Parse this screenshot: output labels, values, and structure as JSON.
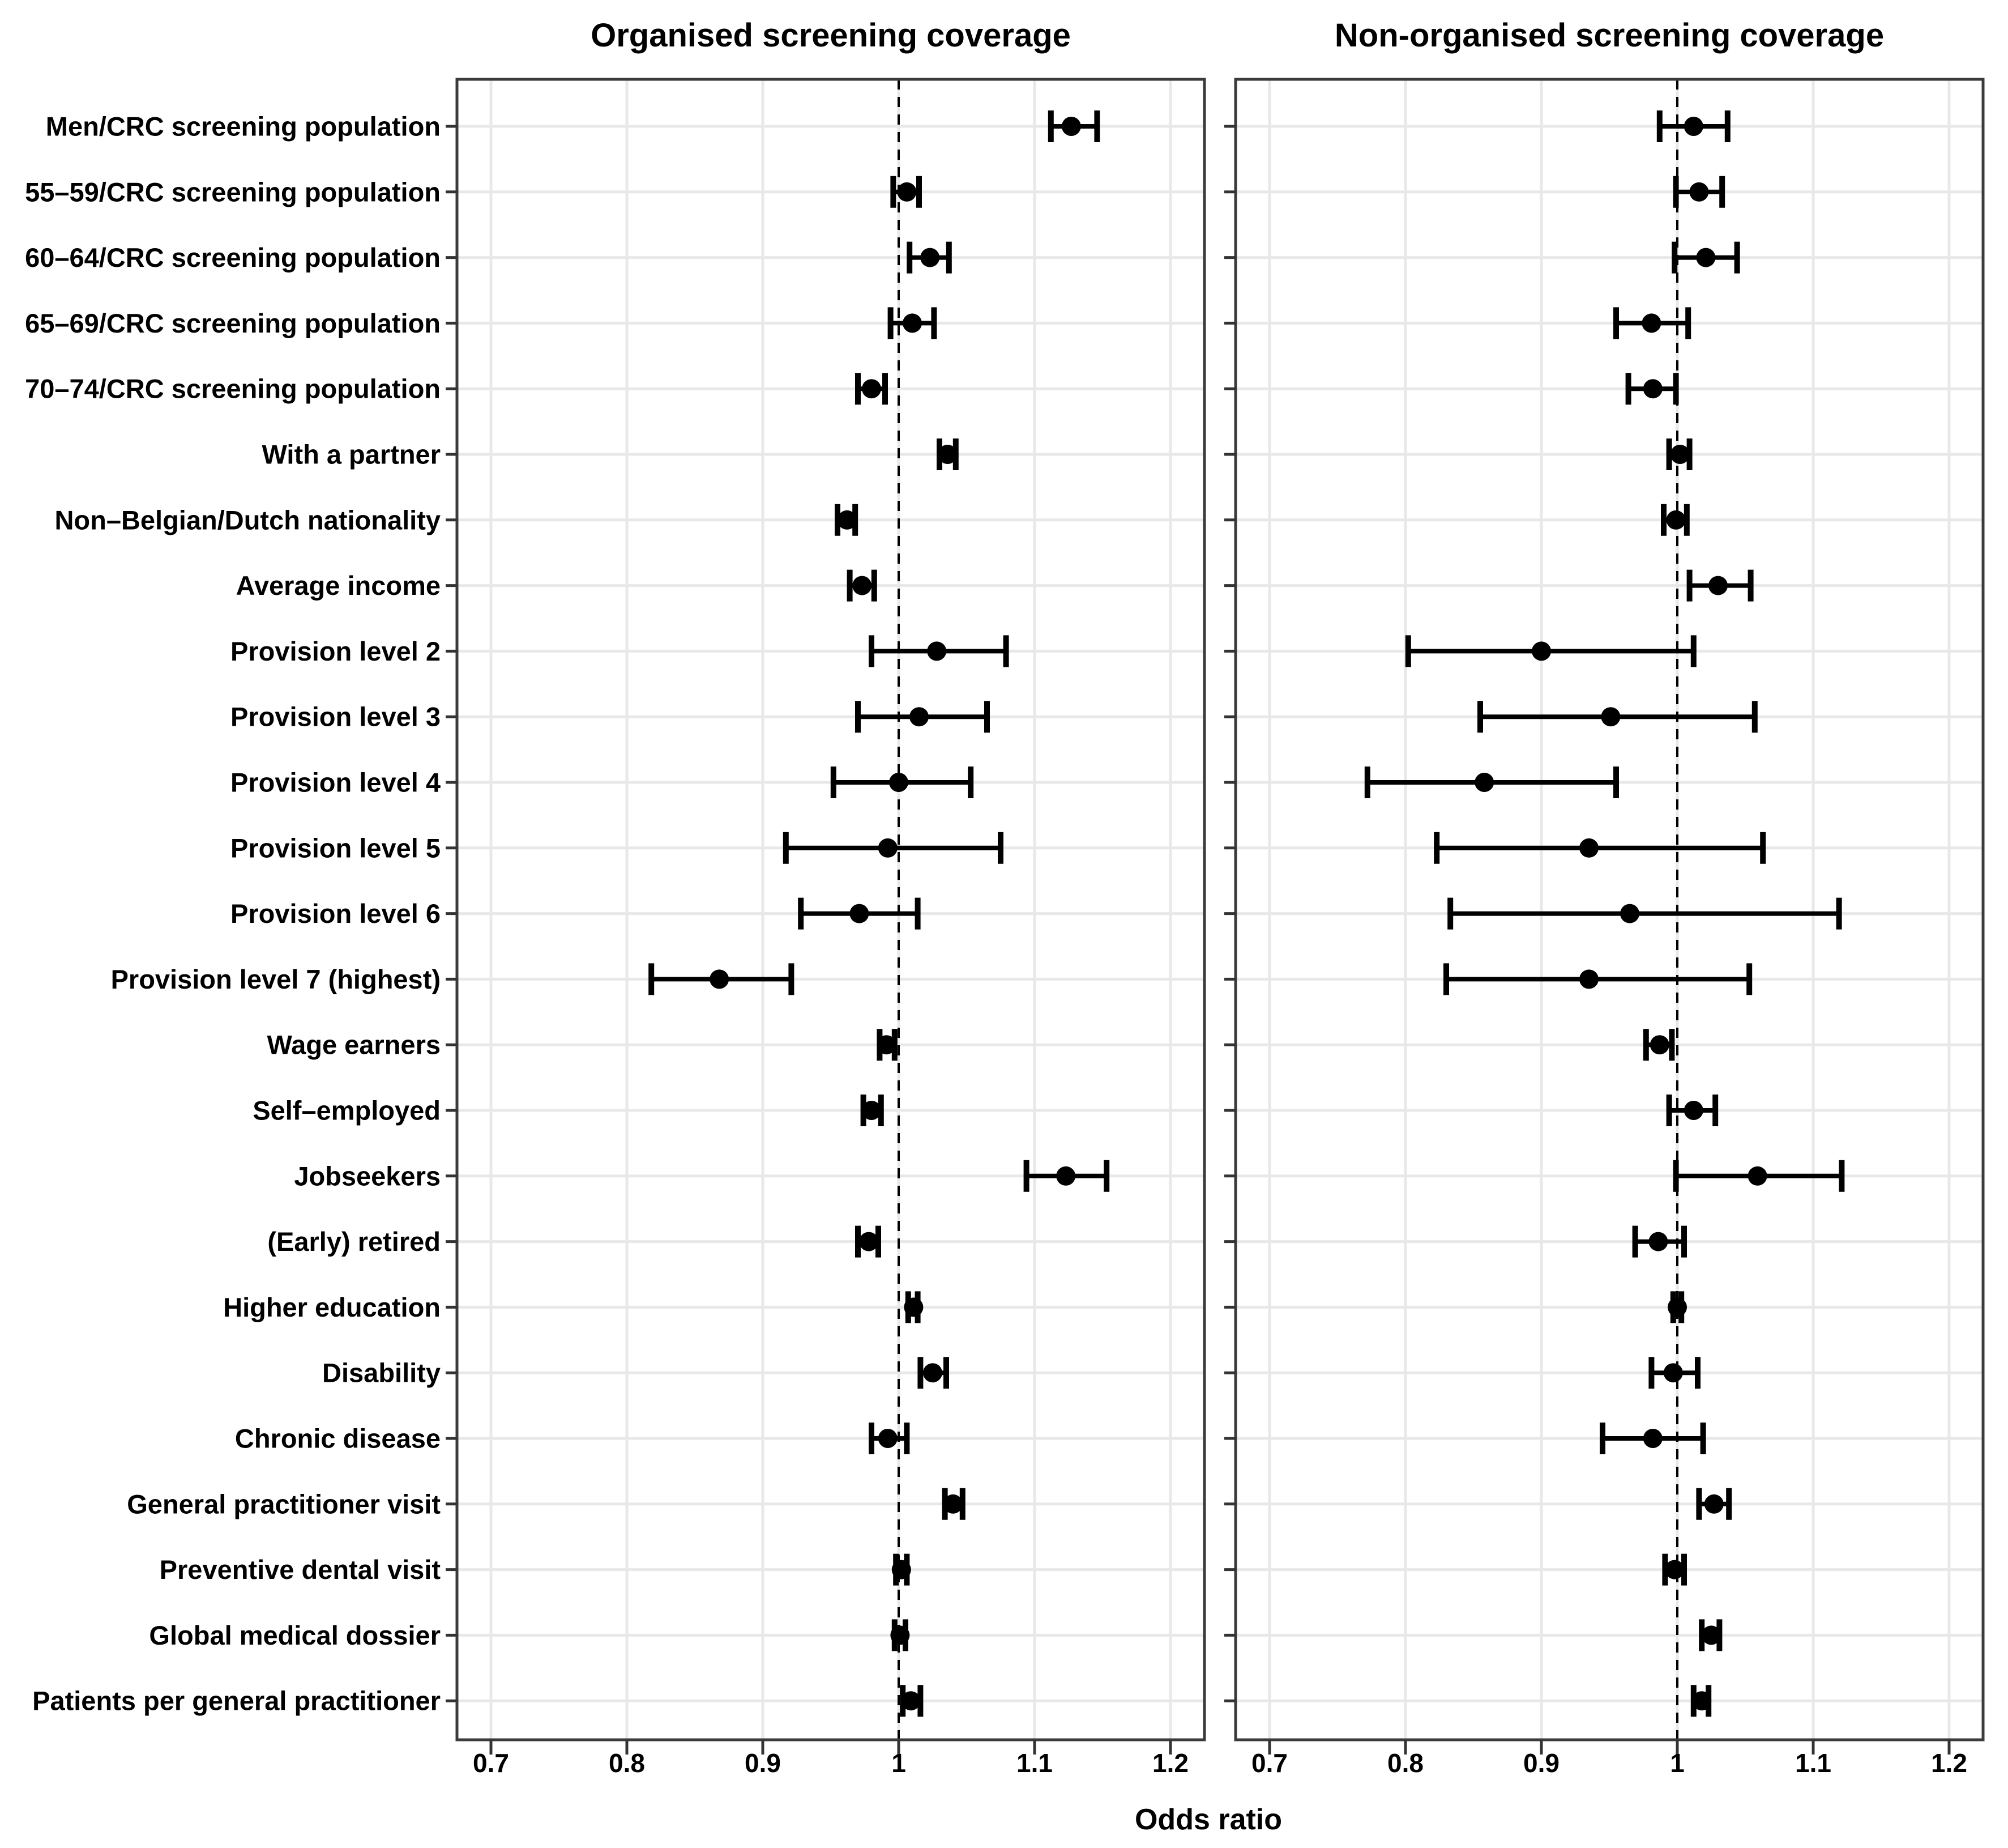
{
  "figure": {
    "xlabel": "Odds ratio",
    "panel_titles": {
      "left": "Organised screening coverage",
      "right": "Non-organised screening coverage"
    }
  },
  "chart_data": {
    "type": "scatter",
    "subtype": "forest-plot",
    "title_left": "Organised screening coverage",
    "title_right": "Non-organised screening coverage",
    "xlabel": "Odds ratio",
    "x_axis": {
      "range": [
        0.675,
        1.225
      ],
      "ticks": [
        {
          "value": 0.7,
          "label": "0.7"
        },
        {
          "value": 0.8,
          "label": "0.8"
        },
        {
          "value": 0.9,
          "label": "0.9"
        },
        {
          "value": 1.0,
          "label": "1"
        },
        {
          "value": 1.1,
          "label": "1.1"
        },
        {
          "value": 1.2,
          "label": "1.2"
        }
      ],
      "reference_line": 1.0,
      "grid": true
    },
    "categories": [
      "Men/CRC screening population",
      "55–59/CRC screening population",
      "60–64/CRC screening population",
      "65–69/CRC screening population",
      "70–74/CRC screening population",
      "With a partner",
      "Non–Belgian/Dutch nationality",
      "Average income",
      "Provision level 2",
      "Provision level 3",
      "Provision level 4",
      "Provision level 5",
      "Provision level 6",
      "Provision level 7 (highest)",
      "Wage earners",
      "Self–employed",
      "Jobseekers",
      "(Early) retired",
      "Higher education",
      "Disability",
      "Chronic disease",
      "General practitioner visit",
      "Preventive dental visit",
      "Global medical dossier",
      "Patients per general practitioner"
    ],
    "series": [
      {
        "name": "Organised screening coverage",
        "points": [
          {
            "or": 1.127,
            "lo": 1.112,
            "hi": 1.146
          },
          {
            "or": 1.006,
            "lo": 0.996,
            "hi": 1.015
          },
          {
            "or": 1.023,
            "lo": 1.008,
            "hi": 1.037
          },
          {
            "or": 1.01,
            "lo": 0.994,
            "hi": 1.026
          },
          {
            "or": 0.98,
            "lo": 0.97,
            "hi": 0.99
          },
          {
            "or": 1.036,
            "lo": 1.03,
            "hi": 1.042
          },
          {
            "or": 0.962,
            "lo": 0.955,
            "hi": 0.968
          },
          {
            "or": 0.973,
            "lo": 0.964,
            "hi": 0.982
          },
          {
            "or": 1.028,
            "lo": 0.98,
            "hi": 1.079
          },
          {
            "or": 1.015,
            "lo": 0.97,
            "hi": 1.065
          },
          {
            "or": 1.0,
            "lo": 0.952,
            "hi": 1.053
          },
          {
            "or": 0.992,
            "lo": 0.917,
            "hi": 1.075
          },
          {
            "or": 0.971,
            "lo": 0.928,
            "hi": 1.014
          },
          {
            "or": 0.868,
            "lo": 0.818,
            "hi": 0.921
          },
          {
            "or": 0.991,
            "lo": 0.986,
            "hi": 0.997
          },
          {
            "or": 0.98,
            "lo": 0.974,
            "hi": 0.987
          },
          {
            "or": 1.123,
            "lo": 1.094,
            "hi": 1.153
          },
          {
            "or": 0.978,
            "lo": 0.97,
            "hi": 0.985
          },
          {
            "or": 1.011,
            "lo": 1.007,
            "hi": 1.014
          },
          {
            "or": 1.025,
            "lo": 1.016,
            "hi": 1.035
          },
          {
            "or": 0.992,
            "lo": 0.98,
            "hi": 1.006
          },
          {
            "or": 1.04,
            "lo": 1.034,
            "hi": 1.047
          },
          {
            "or": 1.002,
            "lo": 0.998,
            "hi": 1.006
          },
          {
            "or": 1.001,
            "lo": 0.997,
            "hi": 1.005
          },
          {
            "or": 1.009,
            "lo": 1.003,
            "hi": 1.016
          }
        ]
      },
      {
        "name": "Non-organised screening coverage",
        "points": [
          {
            "or": 1.012,
            "lo": 0.987,
            "hi": 1.037
          },
          {
            "or": 1.016,
            "lo": 0.999,
            "hi": 1.033
          },
          {
            "or": 1.021,
            "lo": 0.998,
            "hi": 1.044
          },
          {
            "or": 0.981,
            "lo": 0.955,
            "hi": 1.008
          },
          {
            "or": 0.982,
            "lo": 0.964,
            "hi": 0.999
          },
          {
            "or": 1.002,
            "lo": 0.994,
            "hi": 1.009
          },
          {
            "or": 0.999,
            "lo": 0.99,
            "hi": 1.007
          },
          {
            "or": 1.03,
            "lo": 1.009,
            "hi": 1.054
          },
          {
            "or": 0.9,
            "lo": 0.802,
            "hi": 1.012
          },
          {
            "or": 0.951,
            "lo": 0.855,
            "hi": 1.057
          },
          {
            "or": 0.858,
            "lo": 0.772,
            "hi": 0.955
          },
          {
            "or": 0.935,
            "lo": 0.823,
            "hi": 1.063
          },
          {
            "or": 0.965,
            "lo": 0.833,
            "hi": 1.119
          },
          {
            "or": 0.935,
            "lo": 0.83,
            "hi": 1.053
          },
          {
            "or": 0.987,
            "lo": 0.977,
            "hi": 0.996
          },
          {
            "or": 1.012,
            "lo": 0.994,
            "hi": 1.028
          },
          {
            "or": 1.059,
            "lo": 0.999,
            "hi": 1.121
          },
          {
            "or": 0.986,
            "lo": 0.969,
            "hi": 1.005
          },
          {
            "or": 1.0,
            "lo": 0.997,
            "hi": 1.003
          },
          {
            "or": 0.997,
            "lo": 0.981,
            "hi": 1.015
          },
          {
            "or": 0.982,
            "lo": 0.945,
            "hi": 1.019
          },
          {
            "or": 1.027,
            "lo": 1.016,
            "hi": 1.038
          },
          {
            "or": 0.998,
            "lo": 0.991,
            "hi": 1.005
          },
          {
            "or": 1.025,
            "lo": 1.018,
            "hi": 1.031
          },
          {
            "or": 1.018,
            "lo": 1.012,
            "hi": 1.023
          }
        ]
      }
    ],
    "style": {
      "marker_color": "#000000",
      "grid_color": "#e8e8e8",
      "border_color": "#3b3b3b",
      "tick_color": "#333333",
      "reference_line_color": "#000000",
      "legend": "none"
    }
  }
}
